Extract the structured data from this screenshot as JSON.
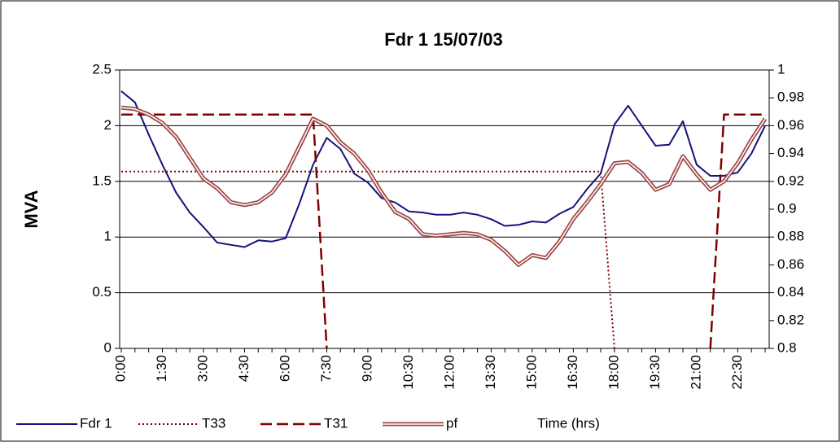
{
  "chart_data": {
    "type": "line",
    "title": "Fdr 1 15/07/03",
    "y_label": "MVA",
    "x_label": "Time (hrs)",
    "categories": [
      "0:00",
      null,
      null,
      "1:30",
      null,
      null,
      "3:00",
      null,
      null,
      "4:30",
      null,
      null,
      "6:00",
      null,
      null,
      "7:30",
      null,
      null,
      "9:00",
      null,
      null,
      "10:30",
      null,
      null,
      "12:00",
      null,
      null,
      "13:30",
      null,
      null,
      "15:00",
      null,
      null,
      "16:30",
      null,
      null,
      "18:00",
      null,
      null,
      "19:30",
      null,
      null,
      "21:00",
      null,
      null,
      "22:30",
      null,
      null
    ],
    "ylim": [
      0,
      2.5
    ],
    "yticks": [
      0,
      0.5,
      1,
      1.5,
      2,
      2.5
    ],
    "y2lim": [
      0.8,
      1
    ],
    "y2ticks": [
      0.8,
      0.82,
      0.84,
      0.86,
      0.88,
      0.9,
      0.92,
      0.94,
      0.96,
      0.98,
      1
    ],
    "grid": true,
    "legend": "bottom",
    "series": [
      {
        "name": "Fdr 1",
        "color": "#14147a",
        "line_style": "solid",
        "axis": "y",
        "values": [
          2.31,
          2.21,
          1.92,
          1.65,
          1.4,
          1.22,
          1.09,
          0.95,
          0.93,
          0.91,
          0.97,
          0.96,
          0.99,
          1.3,
          1.65,
          1.89,
          1.79,
          1.57,
          1.49,
          1.35,
          1.31,
          1.23,
          1.22,
          1.2,
          1.2,
          1.22,
          1.2,
          1.16,
          1.1,
          1.11,
          1.14,
          1.13,
          1.21,
          1.27,
          1.43,
          1.57,
          2.01,
          2.18,
          2.0,
          1.82,
          1.83,
          2.04,
          1.65,
          1.55,
          1.55,
          1.58,
          1.75,
          2.0
        ]
      },
      {
        "name": "T33",
        "color": "#800000",
        "line_style": "dotted",
        "axis": "y2",
        "values": [
          0.927,
          0.927,
          0.927,
          0.927,
          0.927,
          0.927,
          0.927,
          0.927,
          0.927,
          0.927,
          0.927,
          0.927,
          0.927,
          0.927,
          0.927,
          0.927,
          0.927,
          0.927,
          0.927,
          0.927,
          0.927,
          0.927,
          0.927,
          0.927,
          0.927,
          0.927,
          0.927,
          0.927,
          0.927,
          0.927,
          0.927,
          0.927,
          0.927,
          0.927,
          0.927,
          0.927,
          0.8,
          null,
          null,
          null,
          null,
          null,
          null,
          null,
          null,
          null,
          null,
          null
        ]
      },
      {
        "name": "T31",
        "color": "#800000",
        "line_style": "dashed",
        "axis": "y2",
        "values": [
          0.968,
          0.968,
          0.968,
          0.968,
          0.968,
          0.968,
          0.968,
          0.968,
          0.968,
          0.968,
          0.968,
          0.968,
          0.968,
          0.968,
          0.968,
          0.8,
          null,
          null,
          null,
          null,
          null,
          null,
          null,
          null,
          null,
          null,
          null,
          null,
          null,
          null,
          null,
          null,
          null,
          null,
          null,
          null,
          null,
          null,
          null,
          null,
          null,
          null,
          null,
          0.8,
          0.968,
          0.968,
          0.968,
          0.968
        ]
      },
      {
        "name": "pf",
        "color": "#a04848",
        "line_style": "double",
        "axis": "y2",
        "values": [
          0.973,
          0.972,
          0.968,
          0.962,
          0.952,
          0.937,
          0.922,
          0.915,
          0.905,
          0.903,
          0.905,
          0.912,
          0.925,
          0.945,
          0.965,
          0.96,
          0.948,
          0.94,
          0.928,
          0.912,
          0.898,
          0.893,
          0.882,
          0.881,
          0.882,
          0.883,
          0.882,
          0.878,
          0.87,
          0.86,
          0.867,
          0.865,
          0.877,
          0.893,
          0.905,
          0.918,
          0.933,
          0.934,
          0.926,
          0.914,
          0.918,
          0.938,
          0.925,
          0.914,
          0.92,
          0.933,
          0.95,
          0.965
        ]
      }
    ]
  }
}
